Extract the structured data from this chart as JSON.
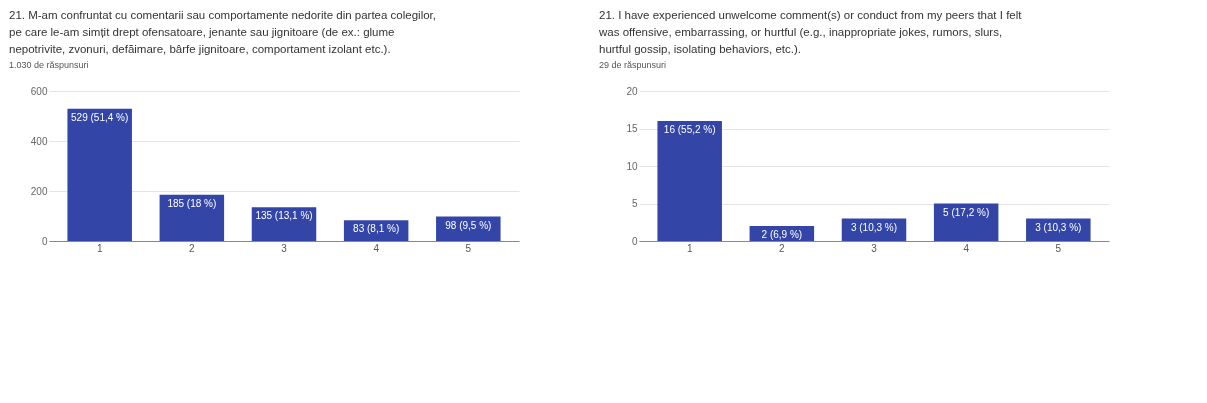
{
  "chart_data": [
    {
      "type": "bar",
      "title": "21. M-am confruntat cu comentarii sau comportamente nedorite din partea colegilor, pe care le-am simțit drept ofensatoare, jenante sau jignitoare (de ex.: glume nepotrivite, zvonuri, defăimare, bârfe jignitoare, comportament izolant etc.).",
      "subtitle": "1.030 de răspunsuri",
      "categories": [
        "1",
        "2",
        "3",
        "4",
        "5"
      ],
      "values": [
        529,
        185,
        135,
        83,
        98
      ],
      "value_labels": [
        "529 (51,4 %)",
        "185 (18 %)",
        "135 (13,1 %)",
        "83 (8,1 %)",
        "98 (9,5 %)"
      ],
      "color": "#3346a8",
      "ylim": [
        0,
        600
      ],
      "yticks": [
        0,
        200,
        400,
        600
      ],
      "grid": "y"
    },
    {
      "type": "bar",
      "title": "21. I have experienced unwelcome comment(s) or conduct from my peers that I felt was offensive, embarrassing, or hurtful (e.g., inappropriate jokes, rumors, slurs, hurtful gossip, isolating behaviors, etc.).",
      "subtitle": "29 de răspunsuri",
      "categories": [
        "1",
        "2",
        "3",
        "4",
        "5"
      ],
      "values": [
        16,
        2,
        3,
        5,
        3
      ],
      "value_labels": [
        "16 (55,2 %)",
        "2 (6,9 %)",
        "3 (10,3 %)",
        "5 (17,2 %)",
        "3 (10,3 %)"
      ],
      "color": "#3346a8",
      "ylim": [
        0,
        20
      ],
      "yticks": [
        0,
        5,
        10,
        15,
        20
      ],
      "grid": "y"
    }
  ]
}
